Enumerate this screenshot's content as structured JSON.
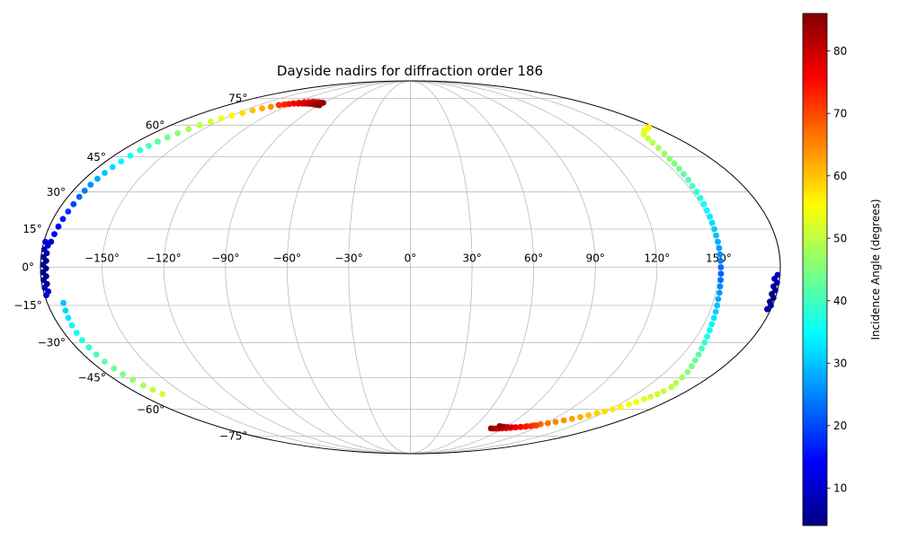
{
  "figure": {
    "background": "#ffffff"
  },
  "chart_data": {
    "type": "scatter",
    "projection": "mollweide",
    "title": "Dayside nadirs for diffraction order 186",
    "colorbar": {
      "label": "Incidence Angle (degrees)",
      "colormap": "jet",
      "vmin": 4,
      "vmax": 86,
      "ticks": [
        10,
        20,
        30,
        40,
        50,
        60,
        70,
        80
      ],
      "tick_labels": [
        "10",
        "20",
        "30",
        "40",
        "50",
        "60",
        "70",
        "80"
      ],
      "gradient_stops": [
        "#000080",
        "#0000ff",
        "#00ffff",
        "#ffff00",
        "#ff0000",
        "#800000"
      ]
    },
    "grid": {
      "show": true,
      "lon_step_deg": 30,
      "lat_step_deg": 15,
      "color": "#bbbbbb"
    },
    "lon_gridlines_deg": [
      -150,
      -120,
      -90,
      -60,
      -30,
      0,
      30,
      60,
      90,
      120,
      150
    ],
    "lon_tick_labels": [
      "−150°",
      "−120°",
      "−90°",
      "−60°",
      "−30°",
      "0°",
      "30°",
      "60°",
      "90°",
      "120°",
      "150°"
    ],
    "lat_gridlines_deg": [
      -75,
      -60,
      -45,
      -30,
      -15,
      0,
      15,
      30,
      45,
      60,
      75
    ],
    "lat_tick_labels": [
      "−75°",
      "−60°",
      "−45°",
      "−30°",
      "−15°",
      "0°",
      "15°",
      "30°",
      "45°",
      "60°",
      "75°"
    ],
    "point_format": [
      "lon_deg",
      "lat_deg",
      "incidence_angle_deg"
    ],
    "series": [
      {
        "name": "north-ascending-arc",
        "points": [
          [
            -176.5,
            10,
            10
          ],
          [
            -176,
            13,
            12
          ],
          [
            -175.5,
            16,
            14
          ],
          [
            -175,
            19,
            16
          ],
          [
            -174.5,
            22,
            18
          ],
          [
            -174.2,
            25,
            20
          ],
          [
            -174,
            28,
            22
          ],
          [
            -173.8,
            30.5,
            24
          ],
          [
            -173.5,
            33,
            26
          ],
          [
            -173,
            35.5,
            28
          ],
          [
            -172.5,
            38,
            30
          ],
          [
            -171.8,
            40.5,
            32
          ],
          [
            -171,
            43,
            34
          ],
          [
            -170,
            45.5,
            36
          ],
          [
            -169,
            48,
            38
          ],
          [
            -167.8,
            50,
            40
          ],
          [
            -166.5,
            52,
            42
          ],
          [
            -164.8,
            54,
            44
          ],
          [
            -163,
            56,
            46
          ],
          [
            -160.8,
            58,
            48
          ],
          [
            -158.5,
            60,
            50
          ],
          [
            -155.8,
            61.8,
            52
          ],
          [
            -153,
            63.5,
            54
          ],
          [
            -149.5,
            65,
            56
          ],
          [
            -146,
            66.5,
            58
          ],
          [
            -142,
            67.8,
            60
          ],
          [
            -138,
            69,
            62
          ],
          [
            -133.5,
            69.9,
            64
          ],
          [
            -129,
            70.8,
            66
          ],
          [
            -124.5,
            71.4,
            68
          ],
          [
            -120,
            72,
            70
          ],
          [
            -115.5,
            72.3,
            72
          ],
          [
            -111,
            72.6,
            74
          ],
          [
            -107,
            72.7,
            76
          ],
          [
            -103,
            72.8,
            78
          ],
          [
            -99.5,
            72.7,
            79.5
          ],
          [
            -96,
            72.6,
            81
          ],
          [
            -93,
            72.4,
            82.5
          ],
          [
            -90,
            72.2,
            84
          ]
        ]
      },
      {
        "name": "north-crest-inner-row",
        "points": [
          [
            -130,
            70.9,
            72
          ],
          [
            -126,
            71.2,
            73
          ],
          [
            -122,
            71.5,
            74.5
          ],
          [
            -118,
            71.7,
            76
          ],
          [
            -114,
            71.8,
            77
          ],
          [
            -110,
            71.8,
            78.5
          ],
          [
            -106,
            71.7,
            80
          ],
          [
            -102,
            71.6,
            81
          ],
          [
            -98,
            71.4,
            82.5
          ],
          [
            -95,
            71.2,
            83.5
          ],
          [
            -92,
            71,
            84.5
          ],
          [
            -89.5,
            70.8,
            85
          ]
        ]
      },
      {
        "name": "east-limb-arc",
        "points": [
          [
            176,
            59,
            57
          ],
          [
            172,
            58,
            55.5
          ],
          [
            168,
            57.5,
            54
          ],
          [
            165,
            56.5,
            53
          ],
          [
            162,
            55.5,
            52
          ],
          [
            160,
            53.5,
            51
          ],
          [
            158.5,
            51.5,
            49.5
          ],
          [
            157,
            49,
            48
          ],
          [
            156,
            46.5,
            47
          ],
          [
            155.2,
            44.2,
            46
          ],
          [
            154.5,
            42,
            45
          ],
          [
            154,
            39.8,
            43.8
          ],
          [
            153.5,
            37.5,
            42.5
          ],
          [
            153,
            35,
            41.2
          ],
          [
            152.5,
            32.5,
            40
          ],
          [
            152.2,
            30,
            38.5
          ],
          [
            152,
            27.5,
            37
          ],
          [
            151.8,
            25,
            35.8
          ],
          [
            151.5,
            22.5,
            34.5
          ],
          [
            151.4,
            20,
            33.2
          ],
          [
            151.2,
            17.5,
            32
          ],
          [
            151.1,
            15,
            30.8
          ],
          [
            151,
            12.5,
            29.5
          ],
          [
            151,
            10,
            28.2
          ],
          [
            151,
            7.5,
            27
          ],
          [
            151,
            5,
            25.8
          ],
          [
            151,
            2.5,
            24.5
          ],
          [
            151.1,
            0,
            23.2
          ],
          [
            151.2,
            -2.5,
            22
          ],
          [
            151.3,
            -5,
            23.5
          ],
          [
            151.5,
            -7.5,
            25
          ],
          [
            151.8,
            -10,
            26.5
          ],
          [
            152,
            -12.5,
            28
          ],
          [
            152.5,
            -15,
            29.5
          ],
          [
            153,
            -17.5,
            31
          ],
          [
            153.5,
            -20,
            32.5
          ],
          [
            154,
            -22.5,
            34
          ],
          [
            154.8,
            -25,
            35.5
          ],
          [
            155.5,
            -27.5,
            37
          ],
          [
            156.5,
            -30,
            38.5
          ],
          [
            157.5,
            -32.5,
            40
          ],
          [
            158.7,
            -35,
            41.5
          ],
          [
            160,
            -37.5,
            43
          ],
          [
            161.5,
            -40,
            44.5
          ],
          [
            163,
            -42.5,
            46
          ],
          [
            164,
            -45,
            47.5
          ],
          [
            165,
            -47.5,
            49
          ]
        ]
      },
      {
        "name": "south-descending-arc",
        "points": [
          [
            165.8,
            -49.3,
            49.8
          ],
          [
            165,
            -51.2,
            50.5
          ],
          [
            164,
            -52.5,
            51
          ],
          [
            162.5,
            -53.8,
            52
          ],
          [
            161,
            -55,
            53
          ],
          [
            159,
            -56.3,
            54
          ],
          [
            157,
            -57.5,
            55
          ],
          [
            154.5,
            -58.8,
            56
          ],
          [
            152,
            -60,
            57
          ],
          [
            149,
            -61,
            58
          ],
          [
            146,
            -62,
            59
          ],
          [
            142.5,
            -63,
            60.2
          ],
          [
            139,
            -64,
            61.5
          ],
          [
            135,
            -64.9,
            62.7
          ],
          [
            131,
            -65.8,
            64
          ],
          [
            126.5,
            -66.6,
            65.2
          ],
          [
            122,
            -67.3,
            66.5
          ],
          [
            117.5,
            -67.9,
            67.7
          ],
          [
            113,
            -68.5,
            69
          ],
          [
            108.5,
            -69,
            70.5
          ],
          [
            104,
            -69.4,
            72
          ],
          [
            100,
            -69.7,
            73.5
          ],
          [
            96,
            -70,
            75
          ],
          [
            92.5,
            -70.2,
            76.5
          ],
          [
            89,
            -70.3,
            78
          ],
          [
            86,
            -70.35,
            79.5
          ],
          [
            83,
            -70.4,
            81
          ],
          [
            80.5,
            -70.35,
            82.5
          ],
          [
            78,
            -70.3,
            84
          ]
        ]
      },
      {
        "name": "south-crest-inner-row",
        "points": [
          [
            116,
            -68.6,
            71
          ],
          [
            112,
            -69,
            72.5
          ],
          [
            108,
            -69.3,
            74
          ],
          [
            104,
            -69.5,
            75.5
          ],
          [
            100,
            -69.6,
            77
          ],
          [
            96,
            -69.6,
            78.5
          ],
          [
            92,
            -69.5,
            80
          ],
          [
            88.5,
            -69.4,
            81.5
          ],
          [
            85.5,
            -69.2,
            83
          ],
          [
            83,
            -69,
            84.5
          ]
        ]
      },
      {
        "name": "southwest-arc",
        "points": [
          [
            -172,
            -14,
            30
          ],
          [
            -172.5,
            -17,
            31.5
          ],
          [
            -173,
            -20,
            33
          ],
          [
            -173.3,
            -23,
            34.5
          ],
          [
            -173.5,
            -26,
            36
          ],
          [
            -173.5,
            -29,
            37.5
          ],
          [
            -173.3,
            -32,
            39
          ],
          [
            -173,
            -35,
            40.5
          ],
          [
            -172.5,
            -38,
            42
          ],
          [
            -171.8,
            -41,
            43.5
          ],
          [
            -170.8,
            -43.5,
            45
          ],
          [
            -169.5,
            -46,
            46.5
          ],
          [
            -168,
            -48.5,
            48
          ],
          [
            -166.3,
            -50.5,
            49.5
          ],
          [
            -164.5,
            -52.5,
            51
          ]
        ]
      },
      {
        "name": "west-antimeridian-low-incidence-cluster",
        "points": [
          [
            -179.3,
            10,
            11
          ],
          [
            -177.6,
            8.5,
            10
          ],
          [
            -179,
            7,
            8.5
          ],
          [
            -177.4,
            5.5,
            7.5
          ],
          [
            -178.8,
            4,
            6.5
          ],
          [
            -177.3,
            2.5,
            5.5
          ],
          [
            -178.7,
            1,
            5
          ],
          [
            -177.3,
            -0.5,
            4.5
          ],
          [
            -178.8,
            -2,
            4.5
          ],
          [
            -177.4,
            -3.5,
            5
          ],
          [
            -178.9,
            -5,
            5.5
          ],
          [
            -177.5,
            -6.5,
            6.5
          ],
          [
            -179,
            -8,
            7.5
          ],
          [
            -177.7,
            -9.5,
            9
          ],
          [
            -179.2,
            -11,
            10.5
          ]
        ]
      },
      {
        "name": "east-antimeridian-low-incidence-cluster",
        "points": [
          [
            178.8,
            -3,
            9
          ],
          [
            177.5,
            -4.5,
            8
          ],
          [
            179,
            -6,
            7
          ],
          [
            177.6,
            -7.5,
            6
          ],
          [
            178.9,
            -9,
            5.5
          ],
          [
            177.7,
            -10.5,
            5
          ],
          [
            179.1,
            -12,
            4.5
          ],
          [
            178,
            -13.5,
            5
          ],
          [
            179.2,
            -15,
            6
          ],
          [
            178.2,
            -16.5,
            7
          ]
        ]
      }
    ]
  }
}
